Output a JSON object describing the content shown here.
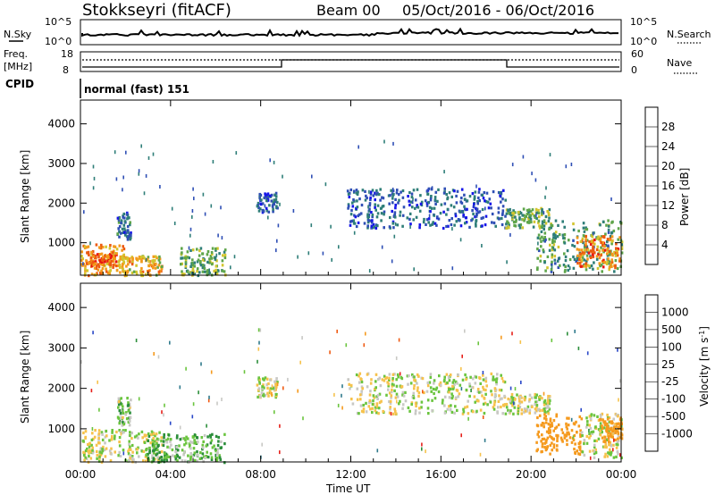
{
  "header": {
    "station": "Stokkseyri (fitACF)",
    "beam": "Beam 00",
    "dates": "05/Oct/2016 - 06/Oct/2016"
  },
  "noise_panel": {
    "left_label": "N.Sky",
    "right_label": "N.Search",
    "left_ticks": [
      "10^5",
      "10^0"
    ],
    "right_ticks": [
      "10^5",
      "10^0"
    ]
  },
  "freq_panel": {
    "label_line1": "Freq.",
    "label_line2": "[MHz]",
    "left_ticks": [
      "18",
      "8"
    ],
    "right_ticks": [
      "60",
      "0"
    ],
    "right_label": "Nave"
  },
  "cpid_panel": {
    "label": "CPID",
    "text": "normal (fast) 151"
  },
  "chart_data": [
    {
      "type": "heatmap",
      "panel": "power",
      "ylabel": "Slant Range [km]",
      "y_ticks": [
        "1000",
        "2000",
        "3000",
        "4000"
      ],
      "ylim": [
        180,
        4600
      ],
      "colorbar_label": "Power [dB]",
      "colorbar_ticks": [
        "4",
        "8",
        "12",
        "16",
        "20",
        "24",
        "28"
      ],
      "colorbar_colors": [
        "#1515e8",
        "#2f4fb5",
        "#2e7e78",
        "#5ea54a",
        "#d2c52e",
        "#f39a1b",
        "#ec5a10",
        "#e81612"
      ],
      "x_hours": [
        0,
        24
      ],
      "regions": [
        {
          "t0": 0.0,
          "t1": 1.9,
          "r0": 200,
          "r1": 1000,
          "v": 22
        },
        {
          "t0": 0.3,
          "t1": 1.6,
          "r0": 450,
          "r1": 800,
          "v": 26
        },
        {
          "t0": 1.6,
          "t1": 2.2,
          "r0": 1100,
          "r1": 1800,
          "v": 8
        },
        {
          "t0": 1.8,
          "t1": 3.6,
          "r0": 200,
          "r1": 700,
          "v": 20
        },
        {
          "t0": 4.4,
          "t1": 6.4,
          "r0": 200,
          "r1": 900,
          "v": 14
        },
        {
          "t0": 7.8,
          "t1": 8.7,
          "r0": 1800,
          "r1": 2300,
          "v": 6
        },
        {
          "t0": 11.8,
          "t1": 18.9,
          "r0": 1400,
          "r1": 2400,
          "v": 7
        },
        {
          "t0": 18.8,
          "t1": 20.8,
          "r0": 1400,
          "r1": 1900,
          "v": 14
        },
        {
          "t0": 20.2,
          "t1": 24.0,
          "r0": 300,
          "r1": 1600,
          "v": 12
        },
        {
          "t0": 22.0,
          "t1": 24.0,
          "r0": 400,
          "r1": 1200,
          "v": 24
        }
      ]
    },
    {
      "type": "heatmap",
      "panel": "velocity",
      "ylabel": "Slant Range [km]",
      "y_ticks": [
        "1000",
        "2000",
        "3000",
        "4000"
      ],
      "ylim": [
        180,
        4600
      ],
      "colorbar_label": "Velocity [m s-1]",
      "colorbar_ticks": [
        "1000",
        "500",
        "100",
        "25",
        "-25",
        "-100",
        "-500",
        "-1000"
      ],
      "colorbar_colors": [
        "#2a48c8",
        "#2f7a8c",
        "#2b8e3a",
        "#6ac43e",
        "#c8c8c4",
        "#f6c24c",
        "#f59a1e",
        "#ef5a12",
        "#e6201a"
      ],
      "x_hours": [
        0,
        24
      ],
      "regions": [
        {
          "t0": 0.0,
          "t1": 3.6,
          "r0": 200,
          "r1": 1000,
          "v": 0
        },
        {
          "t0": 1.6,
          "t1": 2.2,
          "r0": 1100,
          "r1": 1800,
          "v": 60
        },
        {
          "t0": 2.8,
          "t1": 6.4,
          "r0": 200,
          "r1": 900,
          "v": 80
        },
        {
          "t0": 7.8,
          "t1": 8.7,
          "r0": 1800,
          "r1": 2300,
          "v": 0
        },
        {
          "t0": 11.8,
          "t1": 18.9,
          "r0": 1400,
          "r1": 2400,
          "v": 0
        },
        {
          "t0": 18.8,
          "t1": 20.8,
          "r0": 1400,
          "r1": 1900,
          "v": 0
        },
        {
          "t0": 20.2,
          "t1": 22.2,
          "r0": 400,
          "r1": 1400,
          "v": -300
        },
        {
          "t0": 22.2,
          "t1": 24.0,
          "r0": 300,
          "r1": 1400,
          "v": 0
        },
        {
          "t0": 23.0,
          "t1": 24.0,
          "r0": 700,
          "r1": 1300,
          "v": -200
        }
      ]
    }
  ],
  "x_axis": {
    "ticks": [
      "00:00",
      "04:00",
      "08:00",
      "12:00",
      "16:00",
      "20:00",
      "00:00"
    ],
    "label": "Time UT"
  }
}
